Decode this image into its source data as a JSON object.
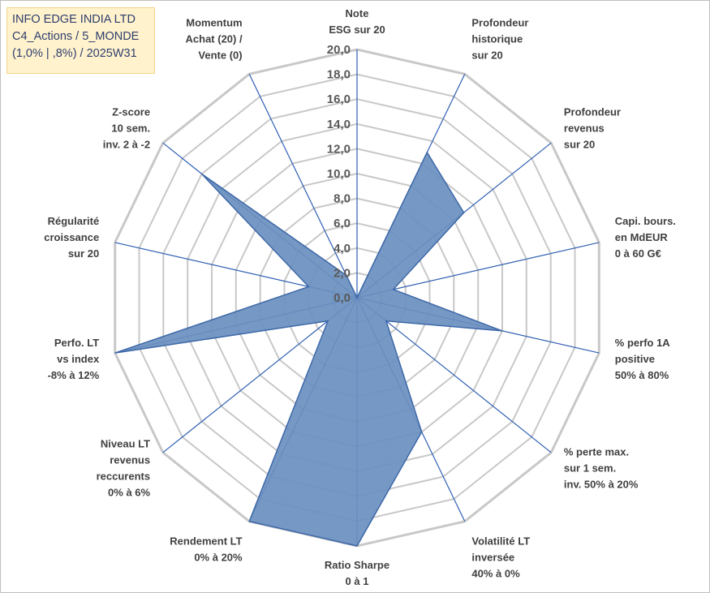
{
  "header": {
    "lines": [
      "INFO EDGE INDIA LTD",
      "C4_Actions / 5_MONDE",
      "(1,0% | ,8%) / 2025W31"
    ]
  },
  "colors": {
    "fill": "#6a8fbf",
    "stroke": "#3d68a8",
    "grid": "#c8c8c8",
    "spoke": "#2f5fb3",
    "title_bg": "#fff2cc"
  },
  "chart_data": {
    "type": "radar",
    "range": [
      0,
      20
    ],
    "tick_step": 2,
    "tick_labels": [
      "0,0",
      "2,0",
      "4,0",
      "6,0",
      "8,0",
      "10,0",
      "12,0",
      "14,0",
      "16,0",
      "18,0",
      "20,0"
    ],
    "axes": [
      {
        "label": [
          "Note",
          "ESG sur 20"
        ],
        "value": 0
      },
      {
        "label": [
          "Profondeur",
          "historique",
          "sur 20"
        ],
        "value": 13
      },
      {
        "label": [
          "Profondeur",
          "revenus",
          "sur 20"
        ],
        "value": 11
      },
      {
        "label": [
          "Capi. bours.",
          "en MdEUR",
          "0 à 60 G€"
        ],
        "value": 3
      },
      {
        "label": [
          "% perfo 1A",
          "positive",
          "50% à 80%"
        ],
        "value": 12
      },
      {
        "label": [
          "% perte max.",
          "sur 1 sem.",
          "inv. 50% à 20%"
        ],
        "value": 3
      },
      {
        "label": [
          "Volatilité LT",
          "inversée",
          "40% à 0%"
        ],
        "value": 12
      },
      {
        "label": [
          "Ratio Sharpe",
          "0 à 1"
        ],
        "value": 20
      },
      {
        "label": [
          "Rendement LT",
          "0% à 20%"
        ],
        "value": 20
      },
      {
        "label": [
          "Niveau LT",
          "revenus",
          "reccurents",
          "0% à 6%"
        ],
        "value": 3
      },
      {
        "label": [
          "Perfo. LT",
          "vs index",
          "-8% à 12%"
        ],
        "value": 20
      },
      {
        "label": [
          "Régularité",
          "croissance",
          "sur 20"
        ],
        "value": 4
      },
      {
        "label": [
          "Z-score",
          "10 sem.",
          "inv. 2 à -2"
        ],
        "value": 16
      },
      {
        "label": [
          "Momentum",
          "Achat (20) /",
          "Vente (0)"
        ],
        "value": 2
      }
    ]
  }
}
